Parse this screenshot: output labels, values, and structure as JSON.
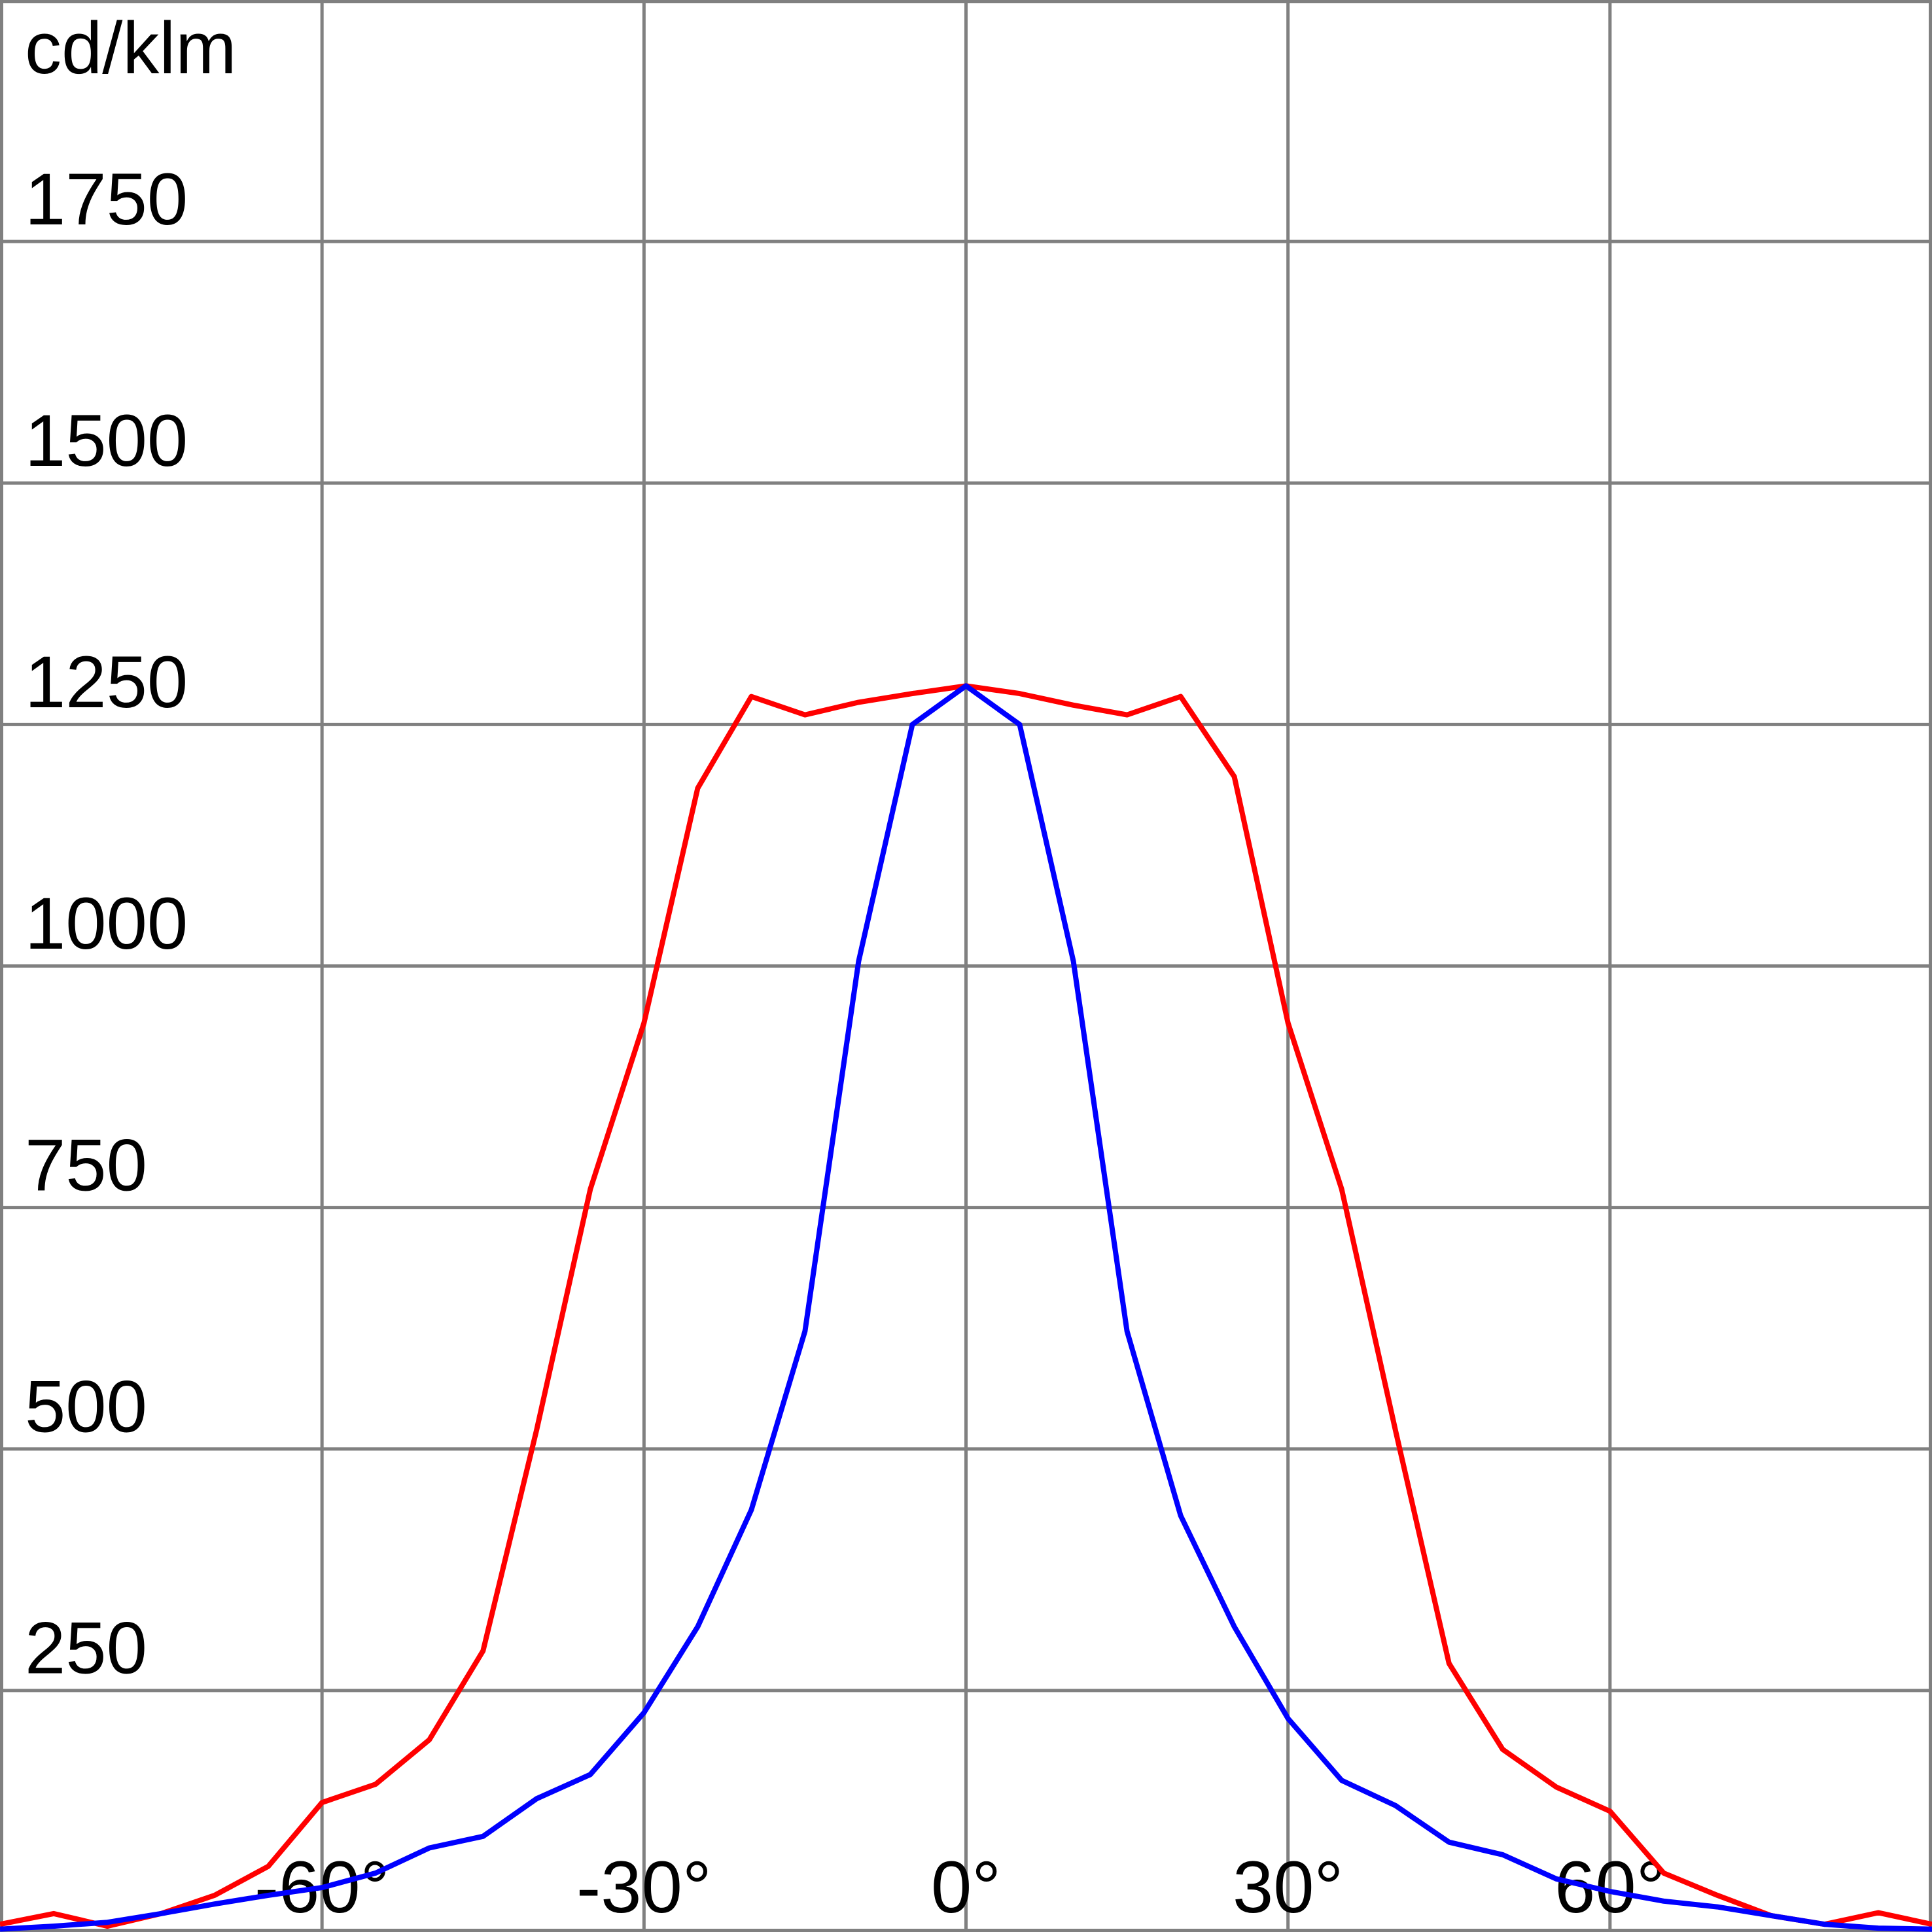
{
  "chart_data": {
    "type": "line",
    "y_label": "cd/klm",
    "x": [
      -90,
      -85,
      -80,
      -75,
      -70,
      -65,
      -60,
      -55,
      -50,
      -45,
      -40,
      -35,
      -30,
      -25,
      -20,
      -15,
      -10,
      -5,
      0,
      5,
      10,
      15,
      20,
      25,
      30,
      35,
      40,
      45,
      50,
      55,
      60,
      65,
      70,
      75,
      80,
      85,
      90
    ],
    "series": [
      {
        "color": "#ff0000",
        "values": [
          8,
          19,
          6,
          19,
          38,
          68,
          134,
          153,
          199,
          291,
          520,
          769,
          941,
          1184,
          1279,
          1260,
          1273,
          1282,
          1290,
          1282,
          1270,
          1260,
          1279,
          1196,
          941,
          769,
          520,
          278,
          189,
          150,
          125,
          61,
          38,
          17,
          8,
          20,
          8
        ]
      },
      {
        "color": "#0000ff",
        "values": [
          3,
          6,
          10,
          19,
          29,
          38,
          46,
          61,
          87,
          99,
          138,
          163,
          227,
          316,
          437,
          622,
          1005,
          1250,
          1290,
          1250,
          1005,
          622,
          431,
          316,
          221,
          157,
          131,
          93,
          80,
          55,
          42,
          32,
          26,
          17,
          8,
          4,
          3
        ]
      }
    ],
    "xlim": [
      -90,
      90
    ],
    "ylim": [
      0,
      2000
    ],
    "xticks": [
      {
        "value": -60,
        "label": "-60°"
      },
      {
        "value": -30,
        "label": "-30°"
      },
      {
        "value": 0,
        "label": "0°"
      },
      {
        "value": 30,
        "label": "30°"
      },
      {
        "value": 60,
        "label": "60°"
      }
    ],
    "yticks": [
      250,
      500,
      750,
      1000,
      1250,
      1500,
      1750
    ],
    "grid": true
  }
}
